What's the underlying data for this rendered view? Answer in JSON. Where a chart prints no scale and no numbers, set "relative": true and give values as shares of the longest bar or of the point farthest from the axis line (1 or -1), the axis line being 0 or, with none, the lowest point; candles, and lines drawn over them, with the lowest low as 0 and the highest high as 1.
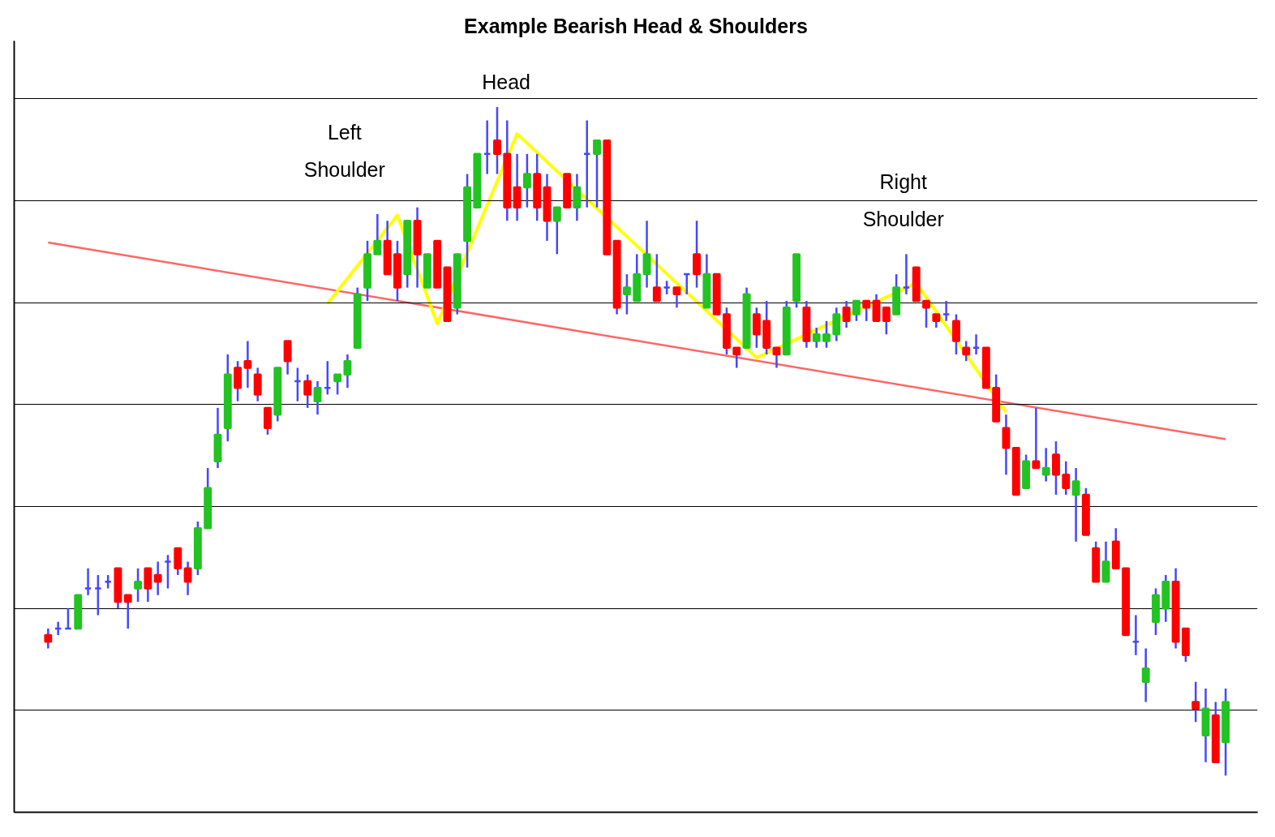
{
  "chart_data": [
    {
      "type": "candlestick",
      "title": "Example Bearish Head & Shoulders",
      "relative": true,
      "grid": "y",
      "categories": [
        null,
        null,
        null,
        null,
        null,
        null,
        null,
        null,
        null,
        null,
        null,
        null,
        null,
        null,
        null,
        null,
        null,
        null,
        null,
        null,
        null,
        null,
        null,
        null,
        null,
        null,
        null,
        null,
        null,
        null,
        null,
        null,
        null,
        null,
        null,
        null,
        null,
        null,
        null,
        null,
        null,
        null,
        null,
        null,
        null,
        null,
        null,
        null,
        null,
        null,
        null,
        null,
        null,
        null,
        null,
        null,
        null,
        null,
        null,
        null,
        null,
        null,
        null,
        null,
        null,
        null,
        null,
        null,
        null,
        null,
        null,
        null,
        null,
        null,
        null,
        null,
        null,
        null,
        null,
        null,
        null,
        null,
        null,
        null,
        null,
        null,
        null,
        null,
        null,
        null,
        null,
        null,
        null,
        null,
        null,
        null,
        null,
        null,
        null,
        null,
        null,
        null,
        null,
        null,
        null,
        null,
        null,
        null,
        null,
        null,
        null,
        null,
        null,
        null,
        null,
        null,
        null,
        null,
        null
      ],
      "series": [
        {
          "color": "#4646ff",
          "colors": [
            "#ff0000",
            "#4646ff",
            "#4646ff",
            "#22c322",
            "#4646ff",
            "#4646ff",
            "#4646ff",
            "#ff0000",
            "#ff0000",
            "#22c322",
            "#ff0000",
            "#ff0000",
            "#4646ff",
            "#ff0000",
            "#ff0000",
            "#22c322",
            "#22c322",
            "#22c322",
            "#22c322",
            "#ff0000",
            "#ff0000",
            "#ff0000",
            "#ff0000",
            "#22c322",
            "#ff0000",
            "#4646ff",
            "#ff0000",
            "#22c322",
            "#4646ff",
            "#22c322",
            "#22c322",
            "#22c322",
            "#22c322",
            "#22c322",
            "#ff0000",
            "#ff0000",
            "#22c322",
            "#ff0000",
            "#22c322",
            "#ff0000",
            "#ff0000",
            "#22c322",
            "#22c322",
            "#22c322",
            "#4646ff",
            "#ff0000",
            "#ff0000",
            "#ff0000",
            "#22c322",
            "#ff0000",
            "#ff0000",
            "#22c322",
            "#ff0000",
            "#22c322",
            "#4646ff",
            "#22c322",
            "#ff0000",
            "#ff0000",
            "#22c322",
            "#22c322",
            "#22c322",
            "#ff0000",
            "#4646ff",
            "#ff0000",
            "#4646ff",
            "#ff0000",
            "#22c322",
            "#ff0000",
            "#ff0000",
            "#ff0000",
            "#22c322",
            "#ff0000",
            "#ff0000",
            "#ff0000",
            "#22c322",
            "#22c322",
            "#ff0000",
            "#22c322",
            "#22c322",
            "#22c322",
            "#ff0000",
            "#22c322",
            "#ff0000",
            "#ff0000",
            "#ff0000",
            "#22c322",
            "#4646ff",
            "#ff0000",
            "#ff0000",
            "#ff0000",
            "#4646ff",
            "#ff0000",
            "#ff0000",
            "#4646ff",
            "#ff0000",
            "#ff0000",
            "#ff0000",
            "#ff0000",
            "#22c322",
            "#ff0000",
            "#22c322",
            "#ff0000",
            "#ff0000",
            "#22c322",
            "#ff0000",
            "#ff0000",
            "#22c322",
            "#ff0000",
            "#ff0000",
            "#4646ff",
            "#22c322",
            "#22c322",
            "#22c322",
            "#ff0000",
            "#ff0000",
            "#ff0000",
            "#22c322",
            "#ff0000",
            "#22c322"
          ],
          "ohlc": [
            [
              0.21,
              0.22,
              0.19,
              0.2
            ],
            [
              0.22,
              0.23,
              0.21,
              0.22
            ],
            [
              0.22,
              0.25,
              0.22,
              0.22
            ],
            [
              0.22,
              0.27,
              0.22,
              0.27
            ],
            [
              0.28,
              0.31,
              0.27,
              0.28
            ],
            [
              0.28,
              0.3,
              0.24,
              0.28
            ],
            [
              0.29,
              0.3,
              0.28,
              0.29
            ],
            [
              0.31,
              0.31,
              0.25,
              0.26
            ],
            [
              0.27,
              0.27,
              0.22,
              0.26
            ],
            [
              0.28,
              0.31,
              0.26,
              0.29
            ],
            [
              0.31,
              0.31,
              0.26,
              0.28
            ],
            [
              0.3,
              0.32,
              0.27,
              0.29
            ],
            [
              0.32,
              0.33,
              0.28,
              0.32
            ],
            [
              0.34,
              0.34,
              0.3,
              0.31
            ],
            [
              0.31,
              0.32,
              0.27,
              0.29
            ],
            [
              0.31,
              0.38,
              0.3,
              0.37
            ],
            [
              0.37,
              0.46,
              0.37,
              0.43
            ],
            [
              0.47,
              0.55,
              0.46,
              0.51
            ],
            [
              0.52,
              0.63,
              0.5,
              0.6
            ],
            [
              0.61,
              0.62,
              0.56,
              0.58
            ],
            [
              0.62,
              0.65,
              0.58,
              0.61
            ],
            [
              0.6,
              0.61,
              0.56,
              0.57
            ],
            [
              0.55,
              0.55,
              0.51,
              0.52
            ],
            [
              0.54,
              0.61,
              0.53,
              0.61
            ],
            [
              0.65,
              0.65,
              0.6,
              0.62
            ],
            [
              0.59,
              0.61,
              0.56,
              0.59
            ],
            [
              0.59,
              0.6,
              0.55,
              0.57
            ],
            [
              0.56,
              0.59,
              0.54,
              0.58
            ],
            [
              0.58,
              0.62,
              0.57,
              0.58
            ],
            [
              0.59,
              0.6,
              0.57,
              0.6
            ],
            [
              0.6,
              0.63,
              0.58,
              0.62
            ],
            [
              0.64,
              0.73,
              0.64,
              0.72
            ],
            [
              0.73,
              0.8,
              0.71,
              0.78
            ],
            [
              0.78,
              0.84,
              0.78,
              0.8
            ],
            [
              0.8,
              0.83,
              0.75,
              0.75
            ],
            [
              0.78,
              0.8,
              0.71,
              0.73
            ],
            [
              0.75,
              0.83,
              0.73,
              0.83
            ],
            [
              0.83,
              0.85,
              0.73,
              0.78
            ],
            [
              0.73,
              0.78,
              0.73,
              0.78
            ],
            [
              0.8,
              0.8,
              0.73,
              0.73
            ],
            [
              0.76,
              0.76,
              0.68,
              0.68
            ],
            [
              0.7,
              0.78,
              0.69,
              0.78
            ],
            [
              0.8,
              0.9,
              0.76,
              0.88
            ],
            [
              0.85,
              0.93,
              0.85,
              0.93
            ],
            [
              0.93,
              0.98,
              0.9,
              0.93
            ],
            [
              0.95,
              1.0,
              0.9,
              0.93
            ],
            [
              0.93,
              0.98,
              0.83,
              0.85
            ],
            [
              0.88,
              0.93,
              0.83,
              0.85
            ],
            [
              0.88,
              0.93,
              0.85,
              0.9
            ],
            [
              0.9,
              0.93,
              0.83,
              0.85
            ],
            [
              0.88,
              0.9,
              0.8,
              0.83
            ],
            [
              0.83,
              0.85,
              0.78,
              0.85
            ],
            [
              0.9,
              0.9,
              0.85,
              0.85
            ],
            [
              0.85,
              0.9,
              0.83,
              0.88
            ],
            [
              0.93,
              0.98,
              0.85,
              0.93
            ],
            [
              0.93,
              0.95,
              0.85,
              0.95
            ],
            [
              0.95,
              0.95,
              0.78,
              0.78
            ],
            [
              0.8,
              0.8,
              0.69,
              0.7
            ],
            [
              0.72,
              0.75,
              0.69,
              0.73
            ],
            [
              0.71,
              0.78,
              0.71,
              0.75
            ],
            [
              0.75,
              0.83,
              0.73,
              0.78
            ],
            [
              0.73,
              0.78,
              0.71,
              0.71
            ],
            [
              0.73,
              0.74,
              0.72,
              0.73
            ],
            [
              0.73,
              0.73,
              0.7,
              0.72
            ],
            [
              0.75,
              0.75,
              0.72,
              0.75
            ],
            [
              0.78,
              0.83,
              0.73,
              0.75
            ],
            [
              0.7,
              0.78,
              0.7,
              0.75
            ],
            [
              0.75,
              0.75,
              0.69,
              0.69
            ],
            [
              0.69,
              0.7,
              0.63,
              0.64
            ],
            [
              0.64,
              0.64,
              0.61,
              0.63
            ],
            [
              0.64,
              0.73,
              0.64,
              0.72
            ],
            [
              0.69,
              0.7,
              0.64,
              0.66
            ],
            [
              0.68,
              0.71,
              0.63,
              0.64
            ],
            [
              0.64,
              0.64,
              0.61,
              0.63
            ],
            [
              0.63,
              0.71,
              0.63,
              0.7
            ],
            [
              0.71,
              0.78,
              0.7,
              0.78
            ],
            [
              0.7,
              0.71,
              0.64,
              0.65
            ],
            [
              0.65,
              0.67,
              0.64,
              0.66
            ],
            [
              0.65,
              0.68,
              0.64,
              0.66
            ],
            [
              0.66,
              0.7,
              0.65,
              0.69
            ],
            [
              0.7,
              0.71,
              0.67,
              0.68
            ],
            [
              0.69,
              0.71,
              0.68,
              0.71
            ],
            [
              0.71,
              0.71,
              0.68,
              0.7
            ],
            [
              0.71,
              0.72,
              0.68,
              0.68
            ],
            [
              0.7,
              0.7,
              0.66,
              0.68
            ],
            [
              0.69,
              0.75,
              0.69,
              0.73
            ],
            [
              0.73,
              0.78,
              0.72,
              0.73
            ],
            [
              0.76,
              0.76,
              0.71,
              0.71
            ],
            [
              0.71,
              0.71,
              0.67,
              0.7
            ],
            [
              0.69,
              0.69,
              0.67,
              0.68
            ],
            [
              0.69,
              0.71,
              0.68,
              0.69
            ],
            [
              0.68,
              0.69,
              0.63,
              0.65
            ],
            [
              0.64,
              0.65,
              0.62,
              0.63
            ],
            [
              0.64,
              0.66,
              0.63,
              0.64
            ],
            [
              0.64,
              0.64,
              0.58,
              0.58
            ],
            [
              0.58,
              0.6,
              0.53,
              0.53
            ],
            [
              0.52,
              0.54,
              0.45,
              0.49
            ],
            [
              0.49,
              0.49,
              0.42,
              0.42
            ],
            [
              0.43,
              0.48,
              0.43,
              0.47
            ],
            [
              0.47,
              0.55,
              0.46,
              0.46
            ],
            [
              0.45,
              0.49,
              0.44,
              0.46
            ],
            [
              0.48,
              0.5,
              0.42,
              0.45
            ],
            [
              0.45,
              0.47,
              0.42,
              0.43
            ],
            [
              0.42,
              0.46,
              0.35,
              0.44
            ],
            [
              0.42,
              0.43,
              0.36,
              0.36
            ],
            [
              0.34,
              0.35,
              0.29,
              0.29
            ],
            [
              0.29,
              0.35,
              0.29,
              0.32
            ],
            [
              0.35,
              0.37,
              0.31,
              0.31
            ],
            [
              0.31,
              0.31,
              0.21,
              0.21
            ],
            [
              0.2,
              0.24,
              0.18,
              0.2
            ],
            [
              0.14,
              0.19,
              0.11,
              0.16
            ],
            [
              0.23,
              0.28,
              0.21,
              0.27
            ],
            [
              0.25,
              0.3,
              0.23,
              0.29
            ],
            [
              0.29,
              0.31,
              0.19,
              0.2
            ],
            [
              0.22,
              0.22,
              0.17,
              0.18
            ],
            [
              0.11,
              0.14,
              0.08,
              0.1
            ],
            [
              0.06,
              0.13,
              0.02,
              0.1
            ],
            [
              0.09,
              0.11,
              0.02,
              0.02
            ],
            [
              0.05,
              0.13,
              0.0,
              0.11
            ]
          ]
        }
      ]
    },
    {
      "type": "line",
      "relative": true,
      "categories": [
        null,
        null,
        null,
        null,
        null,
        null,
        null,
        null,
        null,
        null,
        null,
        null,
        null,
        null,
        null,
        null,
        null,
        null,
        null,
        null,
        null,
        null,
        null,
        null,
        null,
        null,
        null,
        null,
        null,
        null,
        null,
        null,
        null,
        null,
        null,
        null,
        null,
        null,
        null,
        null,
        null,
        null,
        null,
        null,
        null,
        null,
        null,
        null,
        null,
        null,
        null,
        null,
        null,
        null,
        null,
        null,
        null,
        null,
        null,
        null,
        null,
        null,
        null,
        null,
        null,
        null,
        null,
        null,
        null,
        null,
        null,
        null,
        null,
        null,
        null,
        null,
        null,
        null,
        null,
        null,
        null,
        null,
        null,
        null,
        null,
        null,
        null,
        null,
        null,
        null,
        null,
        null,
        null,
        null,
        null,
        null,
        null,
        null,
        null,
        null,
        null,
        null,
        null,
        null,
        null,
        null,
        null,
        null,
        null,
        null,
        null,
        null,
        null,
        null,
        null,
        null,
        null,
        null,
        null
      ],
      "annotations": [
        "Left\nShoulder",
        "Head",
        "Right\nShoulder"
      ],
      "series": [
        {
          "color": "#ff6666",
          "values": [
            0.84,
            null,
            null,
            null,
            null,
            null,
            null,
            null,
            null,
            null,
            null,
            null,
            null,
            null,
            null,
            null,
            null,
            null,
            null,
            null,
            null,
            null,
            null,
            null,
            null,
            null,
            null,
            null,
            null,
            null,
            null,
            null,
            null,
            null,
            null,
            null,
            null,
            null,
            null,
            null,
            null,
            null,
            null,
            null,
            null,
            null,
            null,
            null,
            null,
            null,
            null,
            null,
            null,
            null,
            null,
            null,
            null,
            null,
            null,
            null,
            null,
            null,
            null,
            null,
            null,
            null,
            null,
            null,
            null,
            null,
            null,
            null,
            null,
            null,
            null,
            null,
            null,
            null,
            null,
            null,
            null,
            null,
            null,
            null,
            null,
            null,
            null,
            null,
            null,
            null,
            null,
            null,
            null,
            null,
            null,
            null,
            null,
            null,
            null,
            null,
            null,
            null,
            null,
            null,
            null,
            null,
            null,
            null,
            null,
            null,
            null,
            null,
            null,
            null,
            null,
            null,
            null,
            null,
            0.55
          ]
        },
        {
          "color": "#ffff00",
          "values": [
            null,
            null,
            null,
            null,
            null,
            null,
            null,
            null,
            null,
            null,
            null,
            null,
            null,
            null,
            null,
            null,
            null,
            null,
            null,
            null,
            null,
            null,
            null,
            null,
            null,
            null,
            null,
            null,
            0.75,
            null,
            null,
            null,
            null,
            null,
            null,
            0.88,
            null,
            null,
            null,
            0.72,
            null,
            null,
            null,
            null,
            null,
            null,
            null,
            1.0,
            null,
            null,
            null,
            null,
            null,
            null,
            null,
            null,
            null,
            null,
            null,
            null,
            null,
            null,
            null,
            null,
            null,
            null,
            null,
            null,
            null,
            null,
            null,
            0.67,
            null,
            null,
            null,
            null,
            null,
            null,
            null,
            null,
            null,
            null,
            null,
            null,
            null,
            null,
            null,
            0.78,
            null,
            null,
            null,
            null,
            null,
            null,
            null,
            null,
            0.59,
            null,
            null,
            null,
            null,
            null,
            null,
            null,
            null,
            null,
            null,
            null,
            null,
            null,
            null,
            null,
            null,
            null,
            null,
            null,
            null,
            null,
            null
          ]
        }
      ]
    }
  ]
}
